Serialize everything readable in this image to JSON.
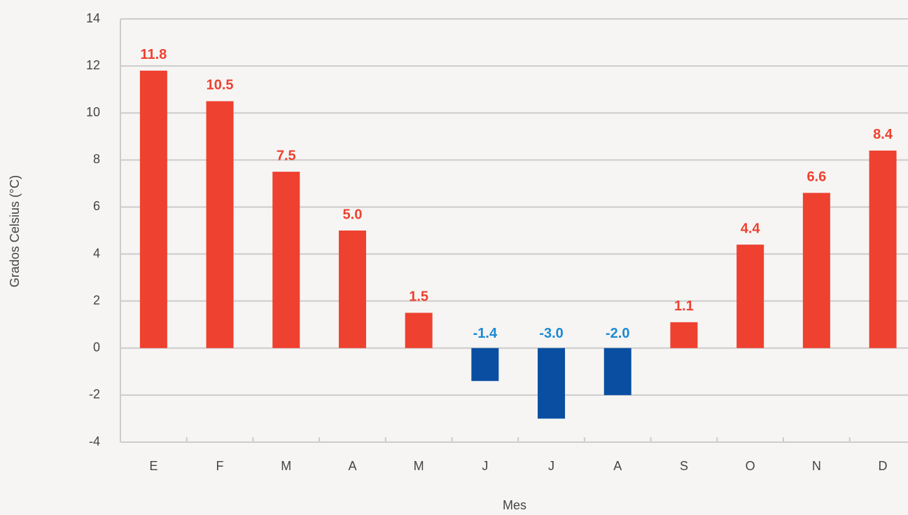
{
  "chart_data": {
    "type": "bar",
    "x_label": "Mes",
    "y_label": "Grados Celsius (°C)",
    "categories": [
      "E",
      "F",
      "M",
      "A",
      "M",
      "J",
      "J",
      "A",
      "S",
      "O",
      "N",
      "D"
    ],
    "values": [
      11.8,
      10.5,
      7.5,
      5.0,
      1.5,
      -1.4,
      -3.0,
      -2.0,
      1.1,
      4.4,
      6.6,
      8.4
    ],
    "value_labels": [
      "11.8",
      "10.5",
      "7.5",
      "5.0",
      "1.5",
      "-1.4",
      "-3.0",
      "-2.0",
      "1.1",
      "4.4",
      "6.6",
      "8.4"
    ],
    "color": "#ee4130",
    "negative_color": "#0a4ea2",
    "label_color": "#ee4130",
    "negative_label_color": "#1a8ad4",
    "ylim": [
      -4,
      14
    ],
    "yticks": [
      -4,
      -2,
      0,
      2,
      4,
      6,
      8,
      10,
      12,
      14
    ],
    "grid": true
  }
}
